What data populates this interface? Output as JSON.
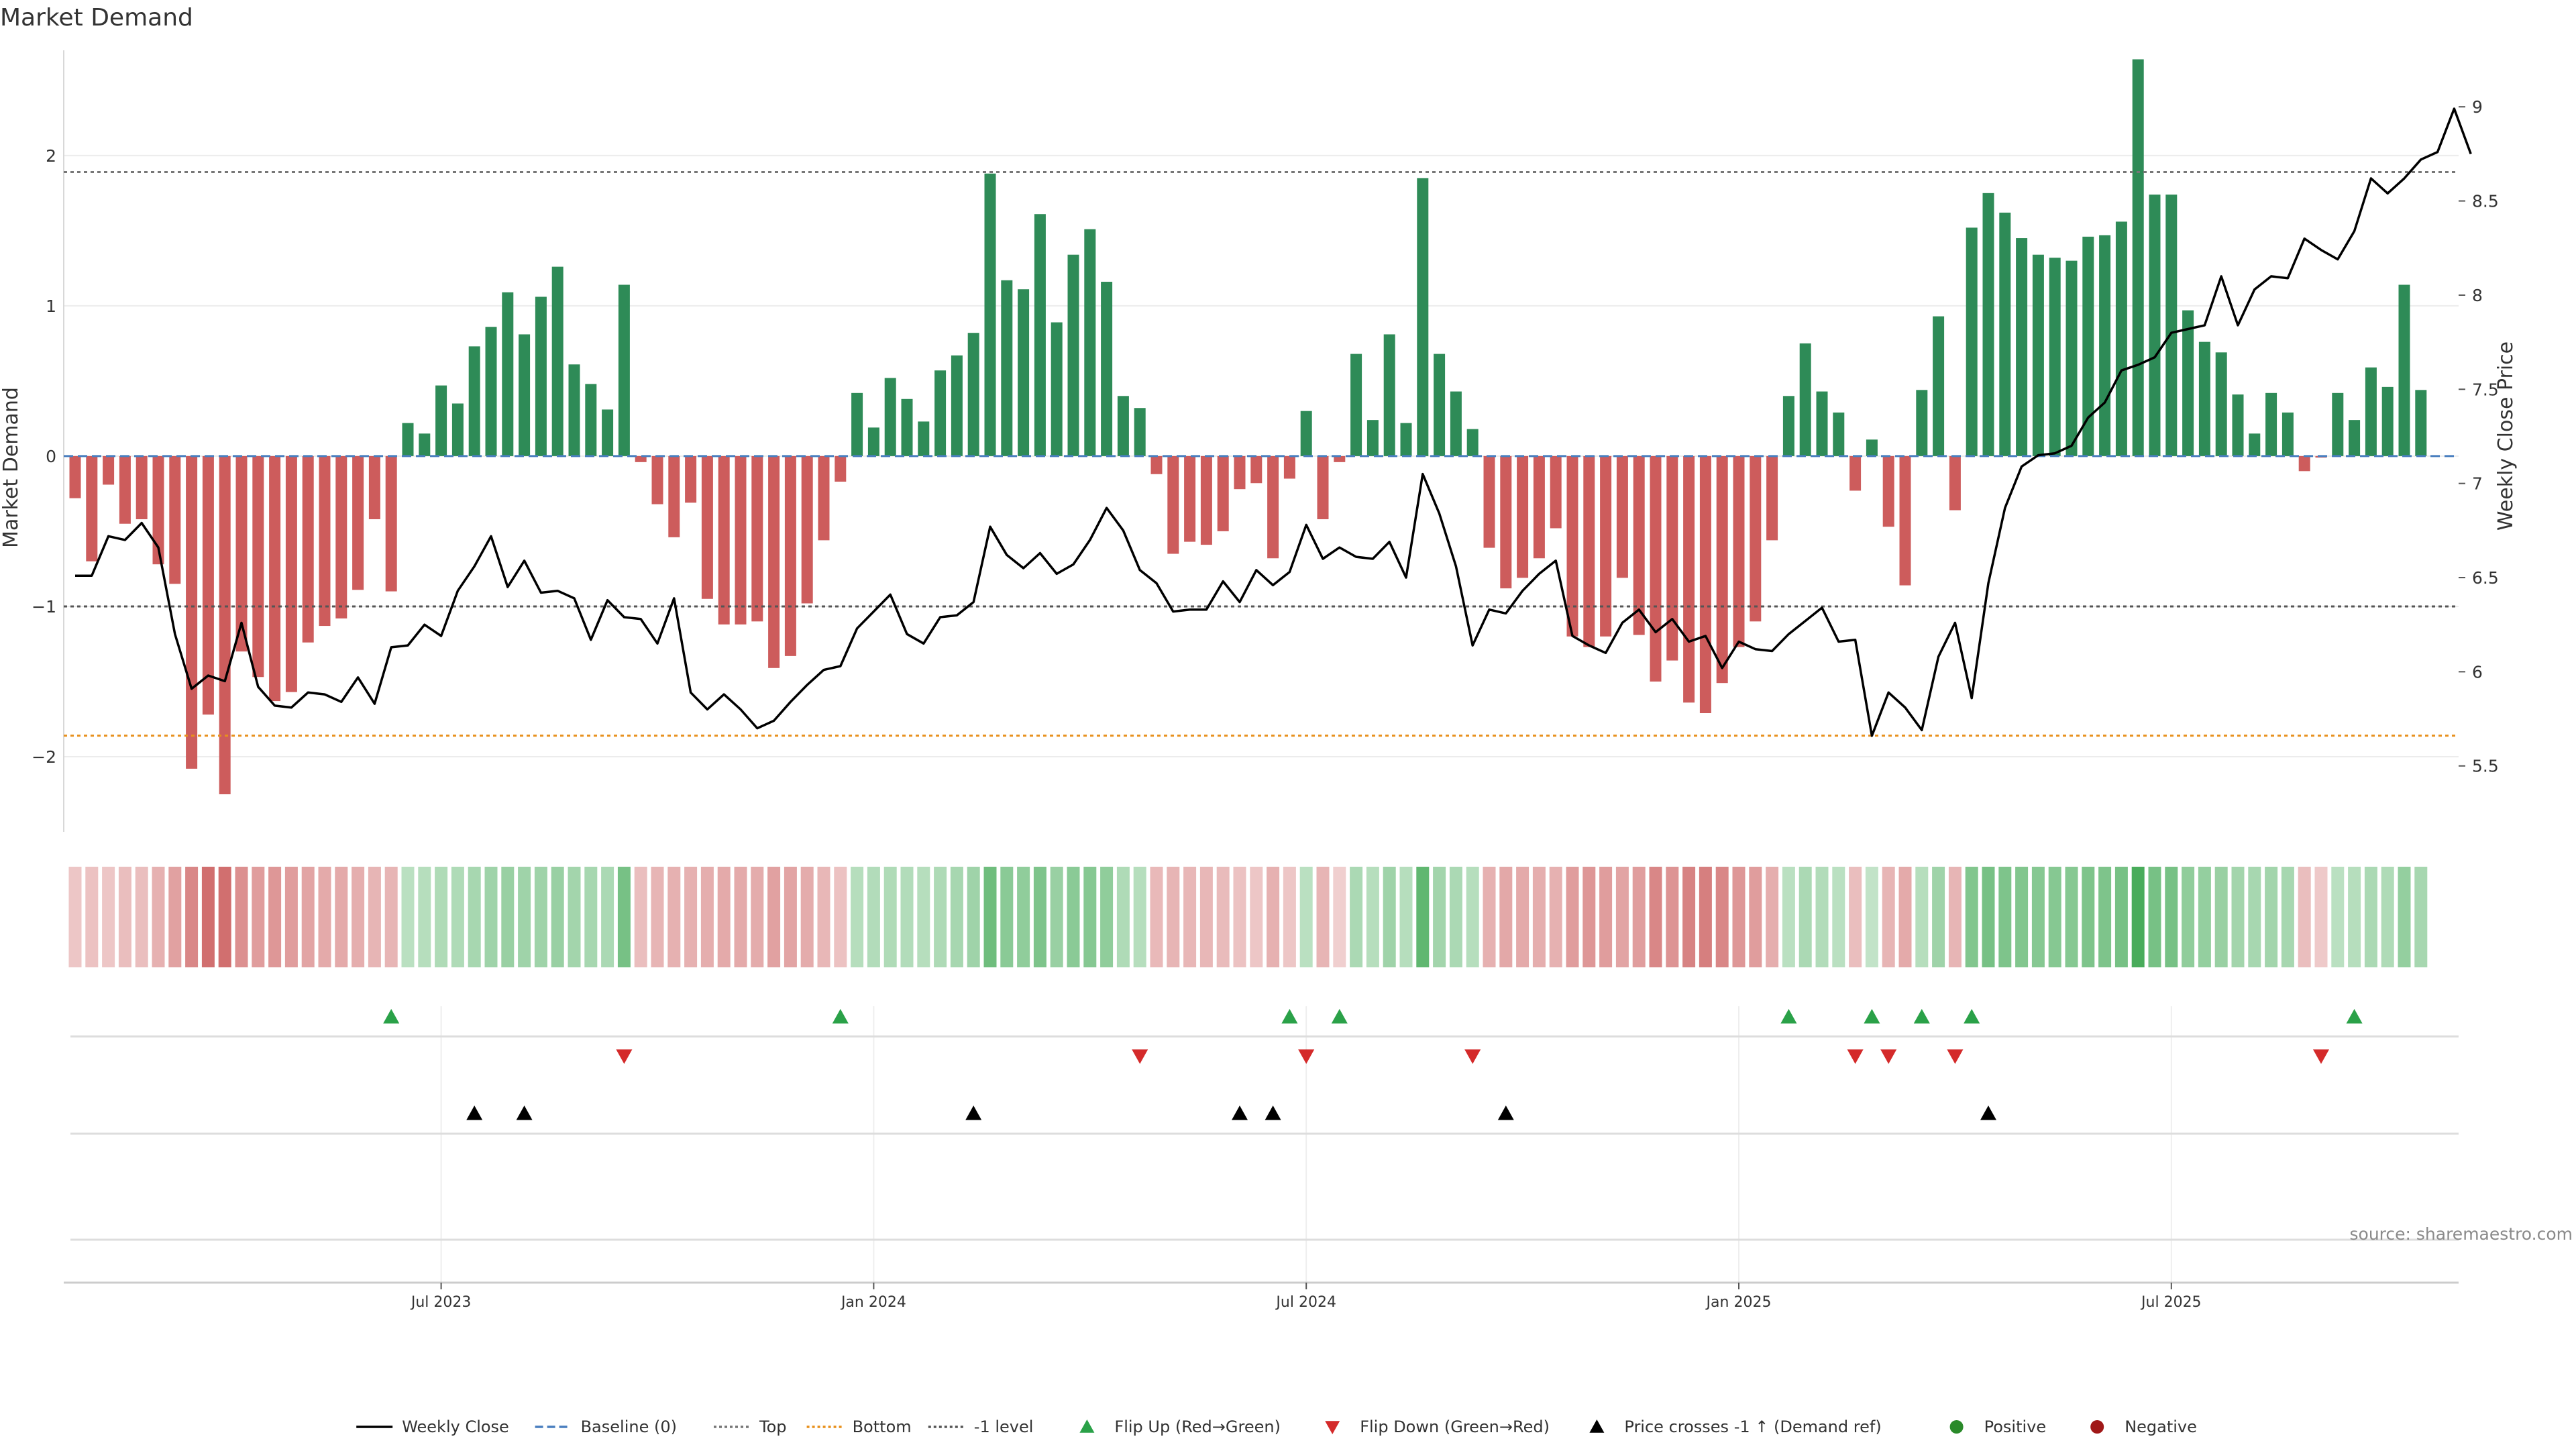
{
  "chart_data": {
    "type": "bar",
    "title": "Market Demand",
    "ylabel": "Market Demand",
    "y2label": "Weekly Close Price",
    "ylim": [
      -2.5,
      2.7
    ],
    "y2lim": [
      5.15,
      9.3
    ],
    "yticks": [
      2,
      1,
      0,
      -1,
      -2
    ],
    "yticks_text": [
      "2",
      "1",
      "0",
      "−1",
      "−2"
    ],
    "y2ticks": [
      9,
      8.5,
      8,
      7.5,
      7,
      6.5,
      6,
      5.5
    ],
    "y2ticks_text": [
      "9",
      "8.5",
      "8",
      "7.5",
      "7",
      "6.5",
      "6",
      "5.5"
    ],
    "reference_lines": {
      "top": 1.89,
      "bottom": -1.86,
      "minus_one": -1,
      "baseline": 0
    },
    "date_ticks": [
      "Jul 2023",
      "Jan 2024",
      "Jul 2024",
      "Jan 2025",
      "Jul 2025"
    ],
    "date_tick_weeks": [
      22,
      48,
      74,
      100,
      126
    ],
    "series": [
      {
        "name": "Market Demand",
        "values": [
          -0.28,
          -0.7,
          -0.19,
          -0.45,
          -0.42,
          -0.72,
          -0.85,
          -2.08,
          -1.72,
          -2.25,
          -1.3,
          -1.47,
          -1.63,
          -1.57,
          -1.24,
          -1.13,
          -1.08,
          -0.89,
          -0.42,
          -0.9,
          0.22,
          0.15,
          0.47,
          0.35,
          0.73,
          0.86,
          1.09,
          0.81,
          1.06,
          1.26,
          0.61,
          0.48,
          0.31,
          1.14,
          -0.04,
          -0.32,
          -0.54,
          -0.31,
          -0.95,
          -1.12,
          -1.12,
          -1.1,
          -1.41,
          -1.33,
          -0.98,
          -0.56,
          -0.17,
          0.42,
          0.19,
          0.52,
          0.38,
          0.23,
          0.57,
          0.67,
          0.82,
          1.88,
          1.17,
          1.11,
          1.61,
          0.89,
          1.34,
          1.51,
          1.16,
          0.4,
          0.32,
          -0.12,
          -0.65,
          -0.57,
          -0.59,
          -0.5,
          -0.22,
          -0.18,
          -0.68,
          -0.15,
          0.3,
          -0.42,
          -0.04,
          0.68,
          0.24,
          0.81,
          0.22,
          1.85,
          0.68,
          0.43,
          0.18,
          -0.61,
          -0.88,
          -0.81,
          -0.68,
          -0.48,
          -1.2,
          -1.27,
          -1.2,
          -0.81,
          -1.19,
          -1.5,
          -1.36,
          -1.64,
          -1.71,
          -1.51,
          -1.27,
          -1.1,
          -0.56,
          0.4,
          0.75,
          0.43,
          0.29,
          -0.23,
          0.11,
          -0.47,
          -0.86,
          0.44,
          0.93,
          -0.36,
          1.52,
          1.75,
          1.62,
          1.45,
          1.34,
          1.32,
          1.3,
          1.46,
          1.47,
          1.56,
          2.64,
          1.74,
          1.74,
          0.97,
          0.76,
          0.69,
          0.41,
          0.15,
          0.42,
          0.29,
          -0.1,
          -0.01,
          0.42,
          0.24,
          0.59,
          0.46,
          1.14,
          0.44
        ]
      },
      {
        "name": "Weekly Close",
        "values": [
          6.51,
          6.51,
          6.72,
          6.7,
          6.79,
          6.66,
          6.2,
          5.91,
          5.98,
          5.95,
          6.26,
          5.92,
          5.82,
          5.81,
          5.89,
          5.88,
          5.84,
          5.97,
          5.83,
          6.13,
          6.14,
          6.25,
          6.19,
          6.43,
          6.56,
          6.72,
          6.45,
          6.59,
          6.42,
          6.43,
          6.39,
          6.17,
          6.38,
          6.29,
          6.28,
          6.15,
          6.39,
          5.89,
          5.8,
          5.88,
          5.8,
          5.7,
          5.74,
          5.84,
          5.93,
          6.01,
          6.03,
          6.23,
          6.32,
          6.41,
          6.2,
          6.15,
          6.29,
          6.3,
          6.37,
          6.77,
          6.62,
          6.55,
          6.63,
          6.52,
          6.57,
          6.7,
          6.87,
          6.75,
          6.54,
          6.47,
          6.32,
          6.33,
          6.33,
          6.48,
          6.37,
          6.54,
          6.46,
          6.53,
          6.78,
          6.6,
          6.66,
          6.61,
          6.6,
          6.69,
          6.5,
          7.05,
          6.84,
          6.56,
          6.14,
          6.33,
          6.31,
          6.43,
          6.52,
          6.59,
          6.19,
          6.14,
          6.1,
          6.26,
          6.33,
          6.21,
          6.28,
          6.16,
          6.19,
          6.02,
          6.16,
          6.12,
          6.11,
          6.2,
          6.27,
          6.34,
          6.16,
          6.17,
          5.66,
          5.89,
          5.81,
          5.69,
          6.08,
          6.26,
          5.86,
          6.47,
          6.87,
          7.09,
          7.15,
          7.16,
          7.2,
          7.35,
          7.43,
          7.6,
          7.63,
          7.67,
          7.8,
          7.82,
          7.84,
          8.1,
          7.84,
          8.03,
          8.1,
          8.09,
          8.3,
          8.24,
          8.19,
          8.34,
          8.62,
          8.54,
          8.62,
          8.72,
          8.76,
          8.99,
          8.75
        ]
      }
    ],
    "state_strip": [
      -0.18,
      -0.2,
      -0.18,
      -0.22,
      -0.22,
      -0.3,
      -0.4,
      -0.55,
      -0.7,
      -0.7,
      -0.5,
      -0.42,
      -0.45,
      -0.42,
      -0.38,
      -0.35,
      -0.35,
      -0.32,
      -0.28,
      -0.28,
      0.2,
      0.22,
      0.25,
      0.25,
      0.3,
      0.35,
      0.38,
      0.35,
      0.35,
      0.38,
      0.32,
      0.3,
      0.28,
      0.55,
      -0.22,
      -0.28,
      -0.3,
      -0.3,
      -0.32,
      -0.35,
      -0.35,
      -0.33,
      -0.4,
      -0.38,
      -0.33,
      -0.27,
      -0.2,
      0.22,
      0.24,
      0.26,
      0.24,
      0.22,
      0.27,
      0.3,
      0.34,
      0.6,
      0.45,
      0.42,
      0.52,
      0.38,
      0.45,
      0.48,
      0.42,
      0.25,
      0.22,
      -0.25,
      -0.28,
      -0.27,
      -0.27,
      -0.24,
      -0.2,
      -0.18,
      -0.3,
      -0.18,
      0.2,
      -0.28,
      -0.12,
      0.28,
      0.22,
      0.35,
      0.22,
      0.68,
      0.32,
      0.28,
      0.22,
      -0.3,
      -0.36,
      -0.35,
      -0.32,
      -0.3,
      -0.42,
      -0.45,
      -0.42,
      -0.38,
      -0.42,
      -0.55,
      -0.48,
      -0.58,
      -0.6,
      -0.55,
      -0.45,
      -0.42,
      -0.32,
      0.2,
      0.28,
      0.24,
      0.2,
      -0.22,
      0.15,
      -0.28,
      -0.35,
      0.22,
      0.35,
      -0.28,
      0.5,
      0.55,
      0.52,
      0.5,
      0.48,
      0.48,
      0.48,
      0.52,
      0.52,
      0.55,
      0.8,
      0.56,
      0.56,
      0.42,
      0.4,
      0.38,
      0.32,
      0.3,
      0.32,
      0.3,
      -0.22,
      -0.15,
      0.2,
      0.22,
      0.28,
      0.26,
      0.4,
      0.3
    ],
    "flip_up_weeks": [
      19,
      46,
      73,
      76,
      103,
      108,
      111,
      114,
      137
    ],
    "flip_down_weeks": [
      33,
      64,
      74,
      84,
      107,
      109,
      113,
      135
    ],
    "price_cross_weeks": [
      24,
      27,
      54,
      70,
      72,
      86,
      115
    ],
    "source": "source: sharemaestro.com",
    "legend": [
      {
        "label": "Weekly Close",
        "kind": "line",
        "color": "#000000",
        "dash": ""
      },
      {
        "label": "Baseline (0)",
        "kind": "line",
        "color": "#4a7fbf",
        "dash": "12 6"
      },
      {
        "label": "Top",
        "kind": "line",
        "color": "#777777",
        "dash": "4 4"
      },
      {
        "label": "Bottom",
        "kind": "line",
        "color": "#e8901c",
        "dash": "4 4"
      },
      {
        "label": "-1 level",
        "kind": "line",
        "color": "#555555",
        "dash": "4 4"
      },
      {
        "label": "Flip Up (Red→Green)",
        "kind": "triangle-up",
        "color": "#2aa148"
      },
      {
        "label": "Flip Down (Green→Red)",
        "kind": "triangle-down",
        "color": "#d42a2a"
      },
      {
        "label": "Price crosses -1 ↑ (Demand ref)",
        "kind": "triangle-up",
        "color": "#000000"
      },
      {
        "label": "Positive",
        "kind": "dot",
        "color": "#2a8a2a"
      },
      {
        "label": "Negative",
        "kind": "dot",
        "color": "#a01818"
      }
    ],
    "colors": {
      "positive_bar": "#2e8b57",
      "negative_bar": "#cd5c5c",
      "price_line": "#000000",
      "top_line": "#777777",
      "bottom_line": "#e8901c",
      "minus_one_line": "#555555",
      "baseline": "#4a7fbf",
      "flip_up": "#2aa148",
      "flip_down": "#d42a2a",
      "cross": "#000000"
    },
    "grid": true,
    "legend_position": "bottom-center"
  }
}
